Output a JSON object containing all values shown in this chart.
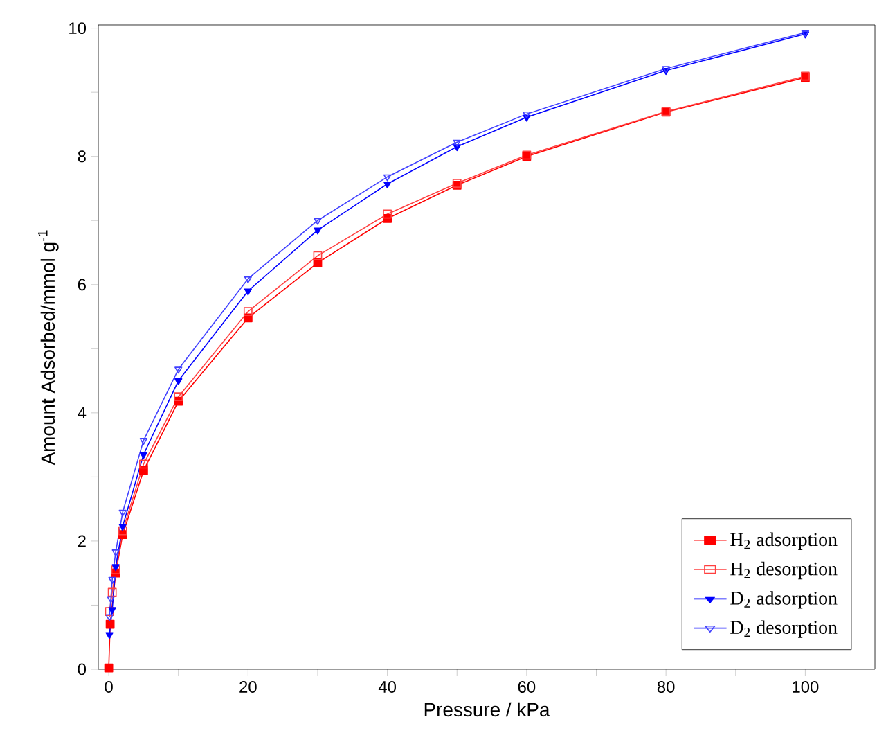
{
  "chart_data": {
    "type": "line",
    "xlabel": "Pressure / kPa",
    "ylabel": "Amount Adsorbed/mmol g$^{-1}$",
    "xlim": [
      -1.5,
      110
    ],
    "ylim": [
      0,
      10.05
    ],
    "xticks": [
      0,
      {
        "value": 10,
        "label": null
      },
      20,
      {
        "value": 30,
        "label": null
      },
      40,
      {
        "value": 50,
        "label": null
      },
      60,
      {
        "value": 70,
        "label": null
      },
      80,
      {
        "value": 90,
        "label": null
      },
      100
    ],
    "yticks": [
      0,
      {
        "value": 1,
        "label": null
      },
      2,
      {
        "value": 3,
        "label": null
      },
      4,
      {
        "value": 5,
        "label": null
      },
      6,
      {
        "value": 7,
        "label": null
      },
      8,
      {
        "value": 9,
        "label": null
      },
      10
    ],
    "legend": "bottom right",
    "grid": false,
    "series": [
      {
        "name": "H$_{2}$ adsorption",
        "color": "#ff0000",
        "marker": "square",
        "x": [
          0,
          0.2,
          1,
          2,
          5,
          10,
          20,
          30,
          40,
          50,
          60,
          80,
          100
        ],
        "values": [
          0.02,
          0.7,
          1.5,
          2.1,
          3.1,
          4.18,
          5.48,
          6.34,
          7.03,
          7.55,
          8.0,
          8.69,
          9.23
        ]
      },
      {
        "name": "H$_{2}$ desorption",
        "color": "#ff4040",
        "marker": "square-open",
        "x": [
          0.1,
          0.5,
          1,
          2,
          5,
          10,
          20,
          30,
          40,
          50,
          60,
          80,
          100
        ],
        "values": [
          0.9,
          1.2,
          1.55,
          2.16,
          3.2,
          4.25,
          5.58,
          6.45,
          7.1,
          7.58,
          8.02,
          8.7,
          9.25
        ]
      },
      {
        "name": "D$_{2}$ adsorption",
        "color": "#0000ff",
        "marker": "triangle",
        "x": [
          0.1,
          0.5,
          1,
          2,
          5,
          10,
          20,
          30,
          40,
          50,
          60,
          80,
          100
        ],
        "values": [
          0.54,
          0.93,
          1.6,
          2.23,
          3.35,
          4.5,
          5.9,
          6.85,
          7.57,
          8.15,
          8.61,
          9.34,
          9.91
        ]
      },
      {
        "name": "D$_{2}$ desorption",
        "color": "#4040ff",
        "marker": "triangle-open",
        "x": [
          0.1,
          0.3,
          0.5,
          1,
          2,
          5,
          10,
          20,
          30,
          40,
          50,
          60,
          80,
          100
        ],
        "values": [
          0.82,
          1.1,
          1.4,
          1.83,
          2.45,
          3.57,
          4.68,
          6.09,
          7.0,
          7.68,
          8.22,
          8.66,
          9.37,
          9.93
        ]
      }
    ]
  }
}
